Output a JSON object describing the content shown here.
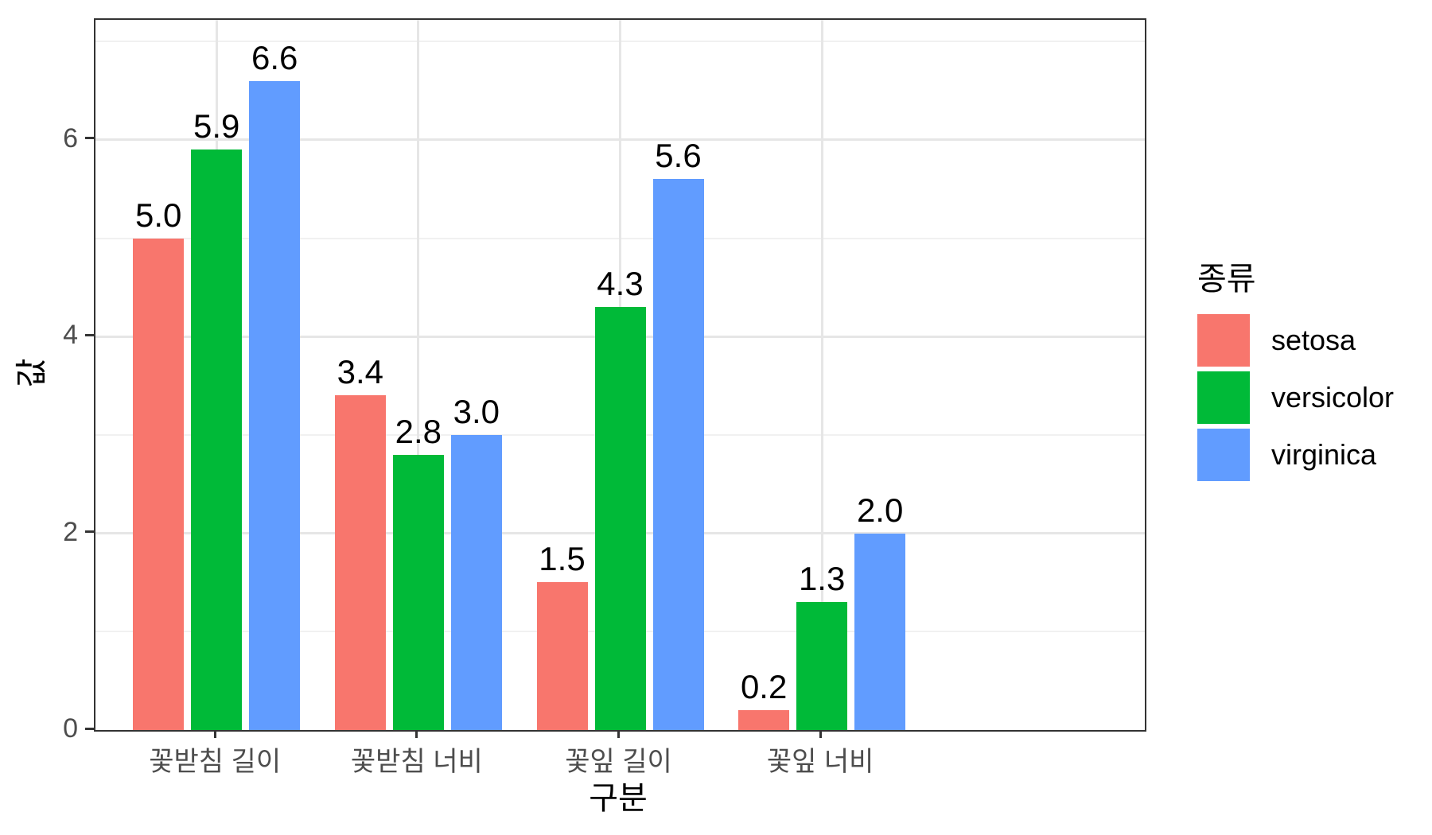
{
  "chart_data": {
    "type": "bar",
    "title": "",
    "categories": [
      "꽃받침 길이",
      "꽃받침 너비",
      "꽃잎 길이",
      "꽃잎 너비"
    ],
    "series": [
      {
        "name": "setosa",
        "color": "#F8766D",
        "values": [
          5.0,
          3.4,
          1.5,
          0.2
        ]
      },
      {
        "name": "versicolor",
        "color": "#00BA38",
        "values": [
          5.9,
          2.8,
          4.3,
          1.3
        ]
      },
      {
        "name": "virginica",
        "color": "#619CFF",
        "values": [
          6.6,
          3.0,
          5.6,
          2.0
        ]
      }
    ],
    "xlabel": "구분",
    "ylabel": "값",
    "legend_title": "종류",
    "legend_position": "right",
    "ylim": [
      0,
      7.22
    ],
    "y_major_ticks": [
      0,
      2,
      4,
      6
    ],
    "y_minor_ticks": [
      1,
      3,
      5,
      7
    ],
    "bar_value_labels": true,
    "grid": true
  },
  "style": {
    "panel_border_color": "#333333",
    "grid_major_color": "#e6e6e6",
    "grid_minor_color": "#f1f1f1",
    "tick_label_color": "#4d4d4d",
    "text_color": "#000000",
    "background_color": "#ffffff"
  }
}
